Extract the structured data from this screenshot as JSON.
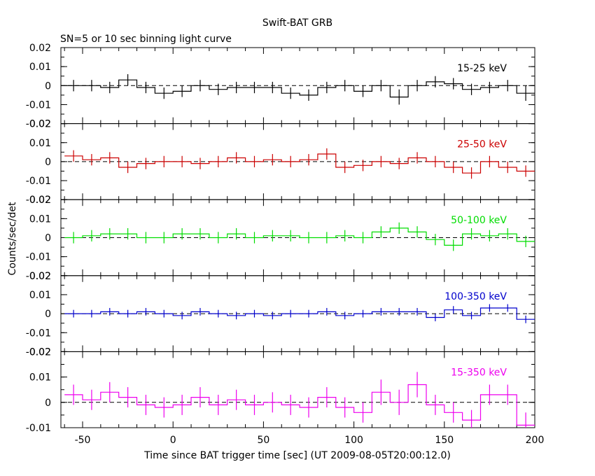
{
  "chart_data": {
    "type": "line",
    "title": "Swift-BAT GRB",
    "subtitle": "SN=5 or 10 sec binning light curve",
    "xlabel": "Time since BAT trigger time [sec] (UT 2009-08-05T20:00:12.0)",
    "ylabel": "Counts/sec/det",
    "xlim": [
      -62,
      200
    ],
    "x_ticks": [
      -50,
      0,
      50,
      100,
      150,
      200
    ],
    "bin_width": 10,
    "x": [
      -55,
      -45,
      -35,
      -25,
      -15,
      -5,
      5,
      15,
      25,
      35,
      45,
      55,
      65,
      75,
      85,
      95,
      105,
      115,
      125,
      135,
      145,
      155,
      165,
      175,
      185,
      195
    ],
    "panels": [
      {
        "name": "15-25 keV",
        "color": "#000000",
        "ylim": [
          -0.02,
          0.02
        ],
        "y_ticks": [
          -0.02,
          -0.01,
          0,
          0.01,
          0.02
        ],
        "y_tick_labels": [
          "-0.02",
          "-0.01",
          "0",
          "0.01",
          "0.02"
        ],
        "values": [
          0.0,
          0.0,
          -0.001,
          0.003,
          -0.001,
          -0.004,
          -0.003,
          0.0,
          -0.002,
          -0.001,
          -0.001,
          -0.001,
          -0.004,
          -0.005,
          -0.001,
          0.0,
          -0.003,
          0.0,
          -0.006,
          0.0,
          0.002,
          0.001,
          -0.002,
          -0.001,
          0.0,
          -0.004
        ],
        "errors": [
          0.003,
          0.003,
          0.003,
          0.003,
          0.003,
          0.003,
          0.003,
          0.003,
          0.003,
          0.003,
          0.003,
          0.003,
          0.003,
          0.003,
          0.003,
          0.003,
          0.003,
          0.003,
          0.004,
          0.003,
          0.003,
          0.003,
          0.003,
          0.003,
          0.003,
          0.004
        ]
      },
      {
        "name": "25-50 keV",
        "color": "#cc0000",
        "ylim": [
          -0.02,
          0.02
        ],
        "y_ticks": [
          -0.02,
          -0.01,
          0,
          0.01,
          0.02
        ],
        "y_tick_labels": [
          "-0.02",
          "-0.01",
          "0",
          "0.01",
          "0.02"
        ],
        "values": [
          0.003,
          0.001,
          0.002,
          -0.003,
          -0.001,
          0.0,
          0.0,
          -0.001,
          0.0,
          0.002,
          0.0,
          0.001,
          0.0,
          0.001,
          0.004,
          -0.003,
          -0.002,
          0.0,
          -0.001,
          0.002,
          0.0,
          -0.003,
          -0.006,
          0.0,
          -0.003,
          -0.005
        ],
        "errors": [
          0.003,
          0.003,
          0.003,
          0.003,
          0.003,
          0.003,
          0.003,
          0.003,
          0.003,
          0.003,
          0.003,
          0.003,
          0.003,
          0.003,
          0.003,
          0.003,
          0.003,
          0.003,
          0.003,
          0.003,
          0.003,
          0.003,
          0.003,
          0.003,
          0.003,
          0.003
        ]
      },
      {
        "name": "50-100 keV",
        "color": "#00dd00",
        "ylim": [
          -0.02,
          0.02
        ],
        "y_ticks": [
          -0.02,
          -0.01,
          0,
          0.01,
          0.02
        ],
        "y_tick_labels": [
          "-0.02",
          "-0.01",
          "0",
          "0.01",
          "0.02"
        ],
        "values": [
          0.0,
          0.001,
          0.002,
          0.002,
          0.0,
          0.0,
          0.002,
          0.002,
          0.0,
          0.002,
          0.0,
          0.001,
          0.001,
          0.0,
          0.0,
          0.001,
          0.0,
          0.003,
          0.005,
          0.003,
          -0.001,
          -0.004,
          0.002,
          0.001,
          0.002,
          -0.002
        ],
        "errors": [
          0.003,
          0.003,
          0.003,
          0.003,
          0.003,
          0.003,
          0.003,
          0.003,
          0.003,
          0.003,
          0.003,
          0.003,
          0.003,
          0.003,
          0.003,
          0.003,
          0.003,
          0.003,
          0.003,
          0.003,
          0.003,
          0.003,
          0.003,
          0.003,
          0.003,
          0.003
        ]
      },
      {
        "name": "100-350 keV",
        "color": "#0000cc",
        "ylim": [
          -0.02,
          0.02
        ],
        "y_ticks": [
          -0.02,
          -0.01,
          0,
          0.01,
          0.02
        ],
        "y_tick_labels": [
          "-0.02",
          "-0.01",
          "0",
          "0.01",
          "0.02"
        ],
        "values": [
          0.0,
          0.0,
          0.001,
          0.0,
          0.001,
          0.0,
          -0.001,
          0.001,
          0.0,
          -0.001,
          0.0,
          -0.001,
          0.0,
          0.0,
          0.001,
          -0.001,
          0.0,
          0.001,
          0.001,
          0.001,
          -0.002,
          0.002,
          -0.001,
          0.003,
          0.003,
          -0.003
        ],
        "errors": [
          0.002,
          0.002,
          0.002,
          0.002,
          0.002,
          0.002,
          0.002,
          0.002,
          0.002,
          0.002,
          0.002,
          0.002,
          0.002,
          0.002,
          0.002,
          0.002,
          0.002,
          0.002,
          0.002,
          0.002,
          0.002,
          0.002,
          0.002,
          0.002,
          0.002,
          0.002
        ]
      },
      {
        "name": "15-350 keV",
        "color": "#ee00ee",
        "ylim": [
          -0.01,
          0.02
        ],
        "y_ticks": [
          -0.01,
          0,
          0.01,
          0.02
        ],
        "y_tick_labels": [
          "-0.01",
          "0",
          "0.01",
          "0.02"
        ],
        "values": [
          0.003,
          0.001,
          0.004,
          0.002,
          -0.001,
          -0.002,
          -0.001,
          0.002,
          -0.001,
          0.001,
          -0.001,
          0.0,
          -0.001,
          -0.002,
          0.002,
          -0.002,
          -0.004,
          0.004,
          0.0,
          0.007,
          -0.001,
          -0.004,
          -0.007,
          0.003,
          0.003,
          -0.009
        ],
        "errors": [
          0.004,
          0.004,
          0.004,
          0.004,
          0.004,
          0.004,
          0.004,
          0.004,
          0.004,
          0.004,
          0.004,
          0.004,
          0.004,
          0.004,
          0.004,
          0.004,
          0.004,
          0.005,
          0.005,
          0.005,
          0.004,
          0.004,
          0.004,
          0.004,
          0.004,
          0.005
        ]
      }
    ]
  }
}
